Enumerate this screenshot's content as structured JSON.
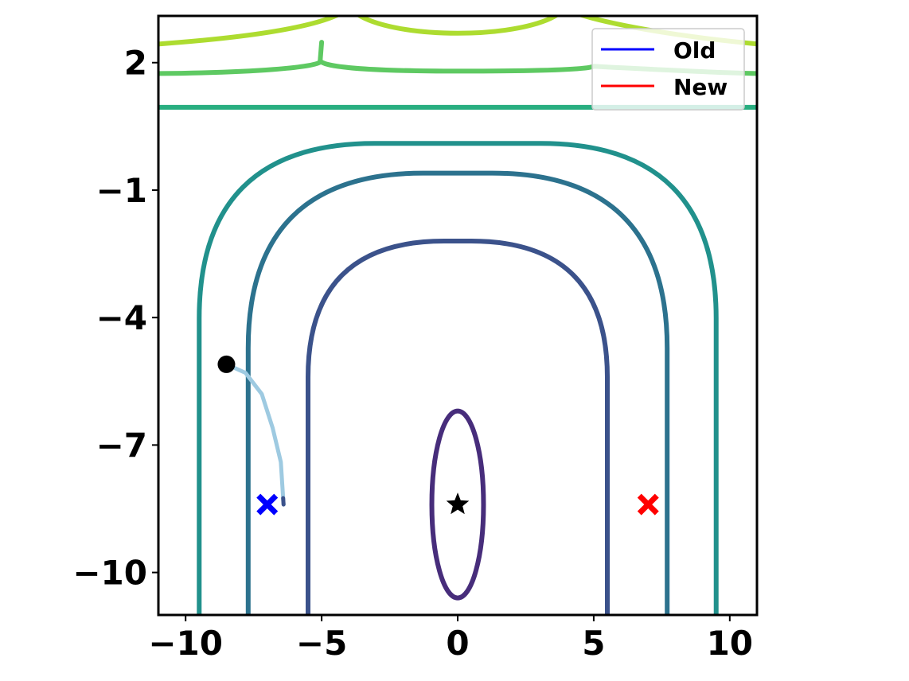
{
  "chart_data": {
    "type": "contour",
    "title": "",
    "xlabel": "",
    "ylabel": "",
    "xlim": [
      -11,
      11
    ],
    "ylim": [
      -11,
      3.1
    ],
    "grid": false,
    "x_ticks": [
      -10,
      -5,
      0,
      5,
      10
    ],
    "x_tick_labels": [
      "−10",
      "−5",
      "0",
      "5",
      "10"
    ],
    "y_ticks": [
      2,
      -1,
      -4,
      -7,
      -10
    ],
    "y_tick_labels": [
      "2",
      "−1",
      "−4",
      "−7",
      "−10"
    ],
    "contours": [
      {
        "level": 1,
        "color": "#472d7b",
        "kind": "ellipse",
        "center": [
          0,
          -8.4
        ],
        "rx": 0.95,
        "ry": 2.2
      },
      {
        "level": 2,
        "color": "#3b528b",
        "kind": "u",
        "x_left": -5.5,
        "x_right": 5.5,
        "y_top": -2.2
      },
      {
        "level": 3,
        "color": "#2c728e",
        "kind": "u",
        "x_left": -7.7,
        "x_right": 7.7,
        "y_top": -0.6
      },
      {
        "level": 4,
        "color": "#21918c",
        "kind": "u",
        "x_left": -9.5,
        "x_right": 9.5,
        "y_top": 0.1
      },
      {
        "level": 5,
        "color": "#28ae80",
        "kind": "hline",
        "y": 0.95
      },
      {
        "level": 6,
        "color": "#5ec962",
        "kind": "hline_cusp",
        "y": 1.8,
        "cusp_x": [
          -5,
          5
        ],
        "cusp_y": 2.2
      },
      {
        "level": 7,
        "color": "#addc30",
        "kind": "arcs",
        "y_base": 2.9
      }
    ],
    "trajectory": {
      "color": "#9ecae1",
      "end_color": "#3b528b",
      "points": [
        [
          -8.5,
          -5.1
        ],
        [
          -7.8,
          -5.3
        ],
        [
          -7.2,
          -5.8
        ],
        [
          -6.8,
          -6.6
        ],
        [
          -6.5,
          -7.4
        ],
        [
          -6.4,
          -8.4
        ]
      ]
    },
    "markers": [
      {
        "name": "start",
        "shape": "circle",
        "x": -8.5,
        "y": -5.1,
        "color": "#000000"
      },
      {
        "name": "optimum",
        "shape": "star",
        "x": 0,
        "y": -8.4,
        "color": "#000000"
      },
      {
        "name": "old",
        "shape": "x",
        "x": -7.0,
        "y": -8.4,
        "color": "#0000ff"
      },
      {
        "name": "new",
        "shape": "x",
        "x": 7.0,
        "y": -8.4,
        "color": "#ff0000"
      }
    ],
    "legend": {
      "position": "upper-right",
      "entries": [
        {
          "label": "Old",
          "color": "#0000ff"
        },
        {
          "label": "New",
          "color": "#ff0000"
        }
      ]
    }
  }
}
